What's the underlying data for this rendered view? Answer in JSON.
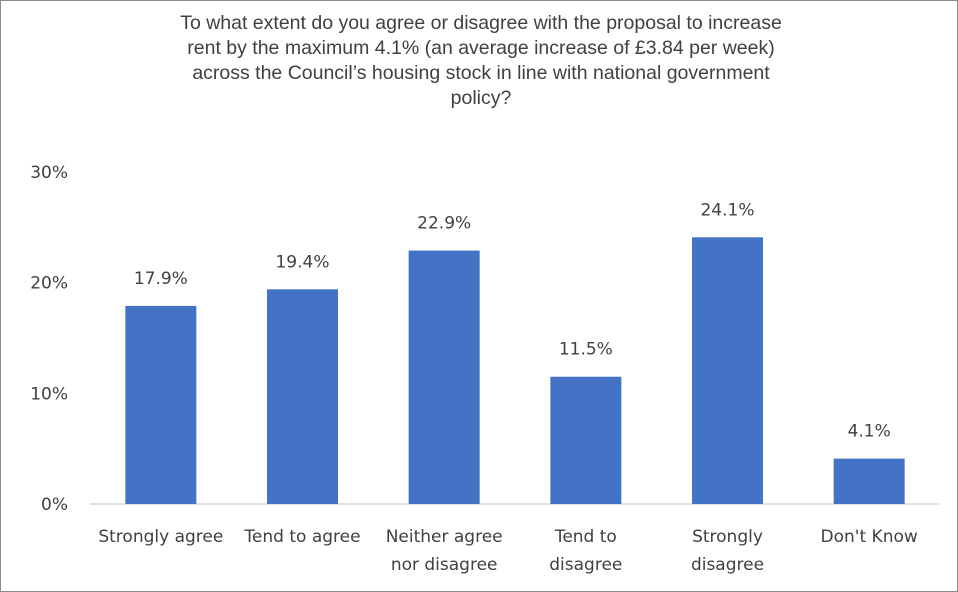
{
  "chart_data": {
    "type": "bar",
    "title_lines": [
      "To what extent do you agree or disagree with the proposal to increase",
      "rent by the maximum 4.1% (an average increase of £3.84 per week)",
      "across the Council’s housing stock in line with national government",
      "policy?"
    ],
    "categories": [
      [
        "Strongly agree"
      ],
      [
        "Tend to agree"
      ],
      [
        "Neither agree",
        "nor disagree"
      ],
      [
        "Tend to",
        "disagree"
      ],
      [
        "Strongly",
        "disagree"
      ],
      [
        "Don't Know"
      ]
    ],
    "values": [
      17.9,
      19.4,
      22.9,
      11.5,
      24.1,
      4.1
    ],
    "data_labels": [
      "17.9%",
      "19.4%",
      "22.9%",
      "11.5%",
      "24.1%",
      "4.1%"
    ],
    "ylim": [
      0,
      30
    ],
    "yticks": [
      {
        "value": 0,
        "label": "0%"
      },
      {
        "value": 10,
        "label": "10%"
      },
      {
        "value": 20,
        "label": "20%"
      },
      {
        "value": 30,
        "label": "30%"
      }
    ],
    "xlabel": "",
    "ylabel": "",
    "grid": false,
    "legend": "none",
    "bar_color": "#4472c4",
    "axis_color": "#d9d9d9"
  }
}
